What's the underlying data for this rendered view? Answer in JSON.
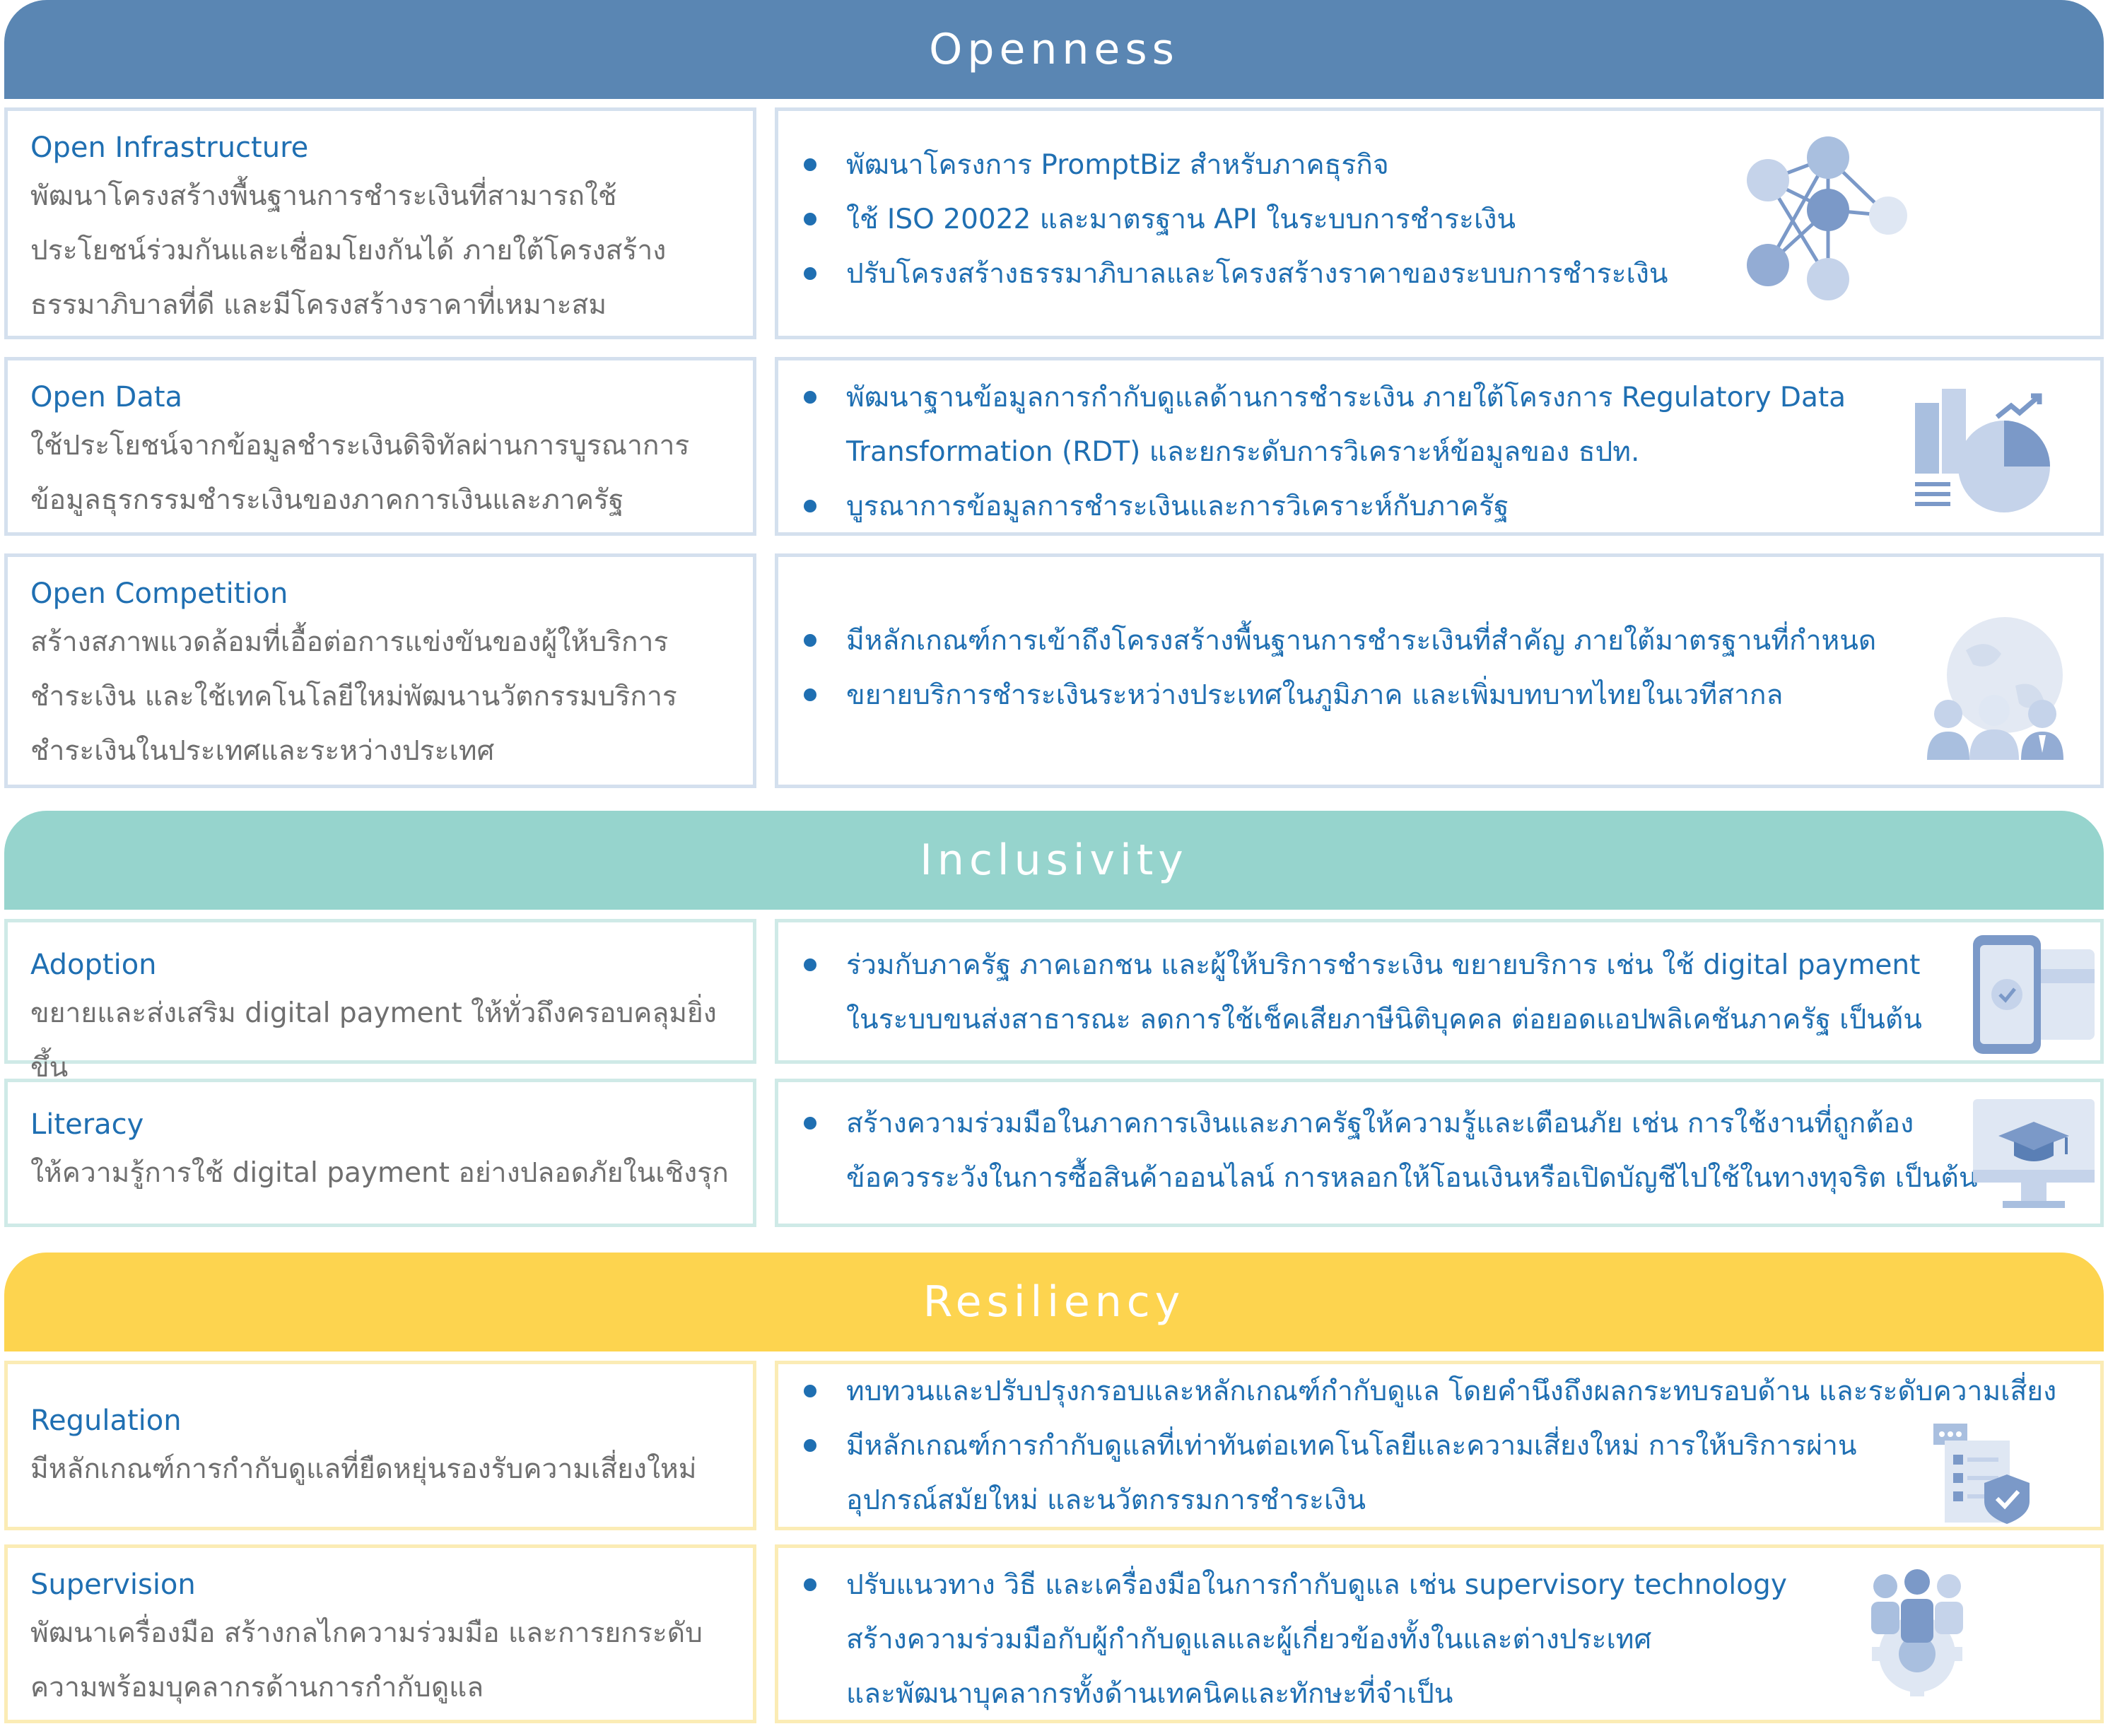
{
  "colors": {
    "openness_band": "#5a86b3",
    "inclusivity_band": "#96d4cd",
    "resiliency_band": "#fdd44f",
    "title_text": "#1f6fb2",
    "body_text": "#6f6f6f",
    "icon_light": "#c5d3ea",
    "icon_dark": "#7b99c8"
  },
  "sections": [
    {
      "title": "Openness",
      "items": [
        {
          "title": "Open Infrastructure",
          "description": [
            "พัฒนาโครงสร้างพื้นฐานการชำระเงินที่สามารถใช้",
            "ประโยชน์ร่วมกันและเชื่อมโยงกันได้ ภายใต้โครงสร้าง",
            "ธรรมาภิบาลที่ดี และมีโครงสร้างราคาที่เหมาะสม"
          ],
          "bullets": [
            [
              "พัฒนาโครงการ PromptBiz สำหรับภาคธุรกิจ"
            ],
            [
              "ใช้ ISO 20022 และมาตรฐาน API ในระบบการชำระเงิน"
            ],
            [
              "ปรับโครงสร้างธรรมาภิบาลและโครงสร้างราคาของระบบการชำระเงิน"
            ]
          ],
          "icon": "network-nodes-icon"
        },
        {
          "title": "Open Data",
          "description": [
            "ใช้ประโยชน์จากข้อมูลชำระเงินดิจิทัลผ่านการบูรณาการ",
            "ข้อมูลธุรกรรมชำระเงินของภาคการเงินและภาครัฐ"
          ],
          "bullets": [
            [
              "พัฒนาฐานข้อมูลการกำกับดูแลด้านการชำระเงิน ภายใต้โครงการ Regulatory Data",
              "Transformation (RDT) และยกระดับการวิเคราะห์ข้อมูลของ ธปท."
            ],
            [
              "บูรณาการข้อมูลการชำระเงินและการวิเคราะห์กับภาครัฐ"
            ]
          ],
          "icon": "chart-analytics-icon"
        },
        {
          "title": "Open Competition",
          "description": [
            "สร้างสภาพแวดล้อมที่เอื้อต่อการแข่งขันของผู้ให้บริการ",
            "ชำระเงิน และใช้เทคโนโลยีใหม่พัฒนานวัตกรรมบริการ",
            "ชำระเงินในประเทศและระหว่างประเทศ"
          ],
          "bullets": [
            [
              "มีหลักเกณฑ์การเข้าถึงโครงสร้างพื้นฐานการชำระเงินที่สำคัญ ภายใต้มาตรฐานที่กำหนด"
            ],
            [
              "ขยายบริการชำระเงินระหว่างประเทศในภูมิภาค และเพิ่มบทบาทไทยในเวทีสากล"
            ]
          ],
          "icon": "globe-people-icon"
        }
      ]
    },
    {
      "title": "Inclusivity",
      "items": [
        {
          "title": "Adoption",
          "description": [
            "ขยายและส่งเสริม digital payment ให้ทั่วถึงครอบคลุมยิ่งขึ้น"
          ],
          "bullets": [
            [
              "ร่วมกับภาครัฐ ภาคเอกชน และผู้ให้บริการชำระเงิน ขยายบริการ เช่น ใช้ digital payment",
              "ในระบบขนส่งสาธารณะ ลดการใช้เช็คเสียภาษีนิติบุคคล ต่อยอดแอปพลิเคชันภาครัฐ เป็นต้น"
            ]
          ],
          "icon": "phone-card-icon"
        },
        {
          "title": "Literacy",
          "description": [
            "ให้ความรู้การใช้ digital payment อย่างปลอดภัยในเชิงรุก"
          ],
          "bullets": [
            [
              "สร้างความร่วมมือในภาคการเงินและภาครัฐให้ความรู้และเตือนภัย เช่น การใช้งานที่ถูกต้อง",
              "ข้อควรระวังในการซื้อสินค้าออนไลน์ การหลอกให้โอนเงินหรือเปิดบัญชีไปใช้ในทางทุจริต เป็นต้น"
            ]
          ],
          "icon": "monitor-graduation-icon"
        }
      ]
    },
    {
      "title": "Resiliency",
      "items": [
        {
          "title": "Regulation",
          "description": [
            "มีหลักเกณฑ์การกำกับดูแลที่ยืดหยุ่นรองรับความเสี่ยงใหม่"
          ],
          "bullets": [
            [
              "ทบทวนและปรับปรุงกรอบและหลักเกณฑ์กำกับดูแล โดยคำนึงถึงผลกระทบรอบด้าน และระดับความเสี่ยง"
            ],
            [
              "มีหลักเกณฑ์การกำกับดูแลที่เท่าทันต่อเทคโนโลยีและความเสี่ยงใหม่ การให้บริการผ่าน",
              "อุปกรณ์สมัยใหม่ และนวัตกรรมการชำระเงิน"
            ]
          ],
          "icon": "document-shield-icon"
        },
        {
          "title": "Supervision",
          "description": [
            "พัฒนาเครื่องมือ สร้างกลไกความร่วมมือ และการยกระดับ",
            "ความพร้อมบุคลากรด้านการกำกับดูแล"
          ],
          "bullets": [
            [
              "ปรับแนวทาง วิธี และเครื่องมือในการกำกับดูแล เช่น supervisory technology",
              "สร้างความร่วมมือกับผู้กำกับดูแลและผู้เกี่ยวข้องทั้งในและต่างประเทศ",
              "และพัฒนาบุคลากรทั้งด้านเทคนิคและทักษะที่จำเป็น"
            ]
          ],
          "icon": "team-gear-icon"
        }
      ]
    }
  ]
}
